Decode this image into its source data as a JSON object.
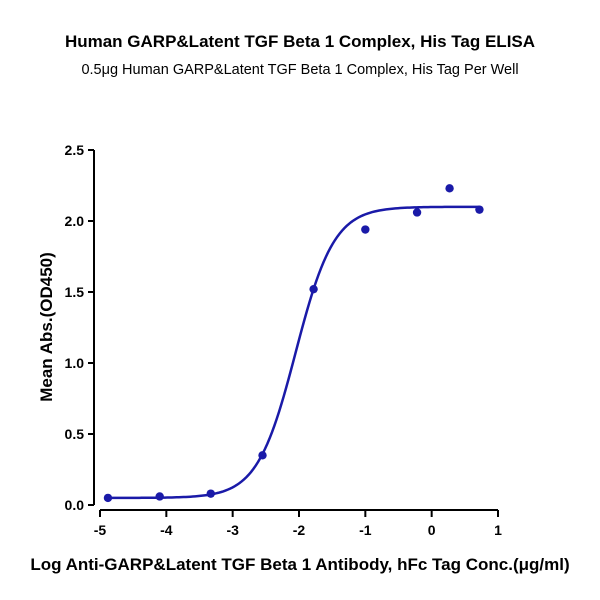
{
  "chart_data": {
    "type": "scatter",
    "title": "Human GARP&Latent TGF Beta 1 Complex, His Tag ELISA",
    "subtitle": "0.5μg  Human GARP&Latent TGF Beta 1 Complex, His Tag Per Well",
    "xlabel": "Log Anti-GARP&Latent TGF Beta 1 Antibody, hFc Tag Conc.(μg/ml)",
    "ylabel": "Mean Abs.(OD450)",
    "xlim": [
      -5,
      1
    ],
    "ylim": [
      0,
      2.5
    ],
    "x_ticks": [
      "-5",
      "-4",
      "-3",
      "-2",
      "-1",
      "0",
      "1"
    ],
    "y_ticks": [
      "0.0",
      "0.5",
      "1.0",
      "1.5",
      "2.0",
      "2.5"
    ],
    "x_tick_values": [
      -5,
      -4,
      -3,
      -2,
      -1,
      0,
      1
    ],
    "y_tick_values": [
      0,
      0.5,
      1.0,
      1.5,
      2.0,
      2.5
    ],
    "grid": false,
    "series": [
      {
        "points": [
          {
            "x": -4.88,
            "y": 0.05
          },
          {
            "x": -4.1,
            "y": 0.06
          },
          {
            "x": -3.33,
            "y": 0.08
          },
          {
            "x": -2.55,
            "y": 0.35
          },
          {
            "x": -1.78,
            "y": 1.52
          },
          {
            "x": -1.0,
            "y": 1.94
          },
          {
            "x": -0.22,
            "y": 2.06
          },
          {
            "x": 0.27,
            "y": 2.23
          },
          {
            "x": 0.72,
            "y": 2.08
          }
        ],
        "fit": {
          "model": "4PL",
          "bottom": 0.05,
          "top": 2.1,
          "logEC50": -2.05,
          "hill": 1.5,
          "x_range": [
            -4.9,
            0.72
          ]
        }
      }
    ],
    "colors": {
      "series": "#1a1aa8",
      "axis": "#000000"
    }
  }
}
